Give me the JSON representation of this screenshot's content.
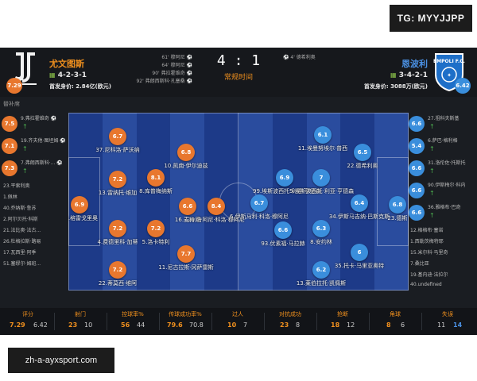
{
  "watermark_top": "TG: MYYJJPP",
  "watermark_bottom": "zh-a-ayxsport.com",
  "home": {
    "name": "尤文图斯",
    "formation": "4-2-3-1",
    "value_label": "首发身价: 2.84亿(欧元)",
    "rating": "7.29",
    "events": [
      "61' 穆阿尼",
      "64' 穆阿尼",
      "90' 弗拉霍维奇",
      "92' 弗朗西斯科·孔塞桑"
    ]
  },
  "away": {
    "name": "恩波利",
    "formation": "3-4-2-1",
    "value_label": "首发身价: 3088万(欧元)",
    "rating": "6.42",
    "events": [
      "4' 德希利奥"
    ]
  },
  "score": "4 : 1",
  "status": "常规时间",
  "subs_title": "替补席",
  "colors": {
    "home": "#e8772e",
    "away": "#3a8edc",
    "accent": "#f0901e",
    "pitch_dark": "#1d3a88",
    "pitch_light": "#2a4c9e"
  },
  "home_bench": [
    {
      "num": "9.",
      "name": "弗拉霍维奇",
      "rating": "7.5",
      "icon": "ball-icon"
    },
    {
      "num": "19.",
      "name": "齐夫他·图坦姆",
      "rating": "7.1",
      "icon": "ball-icon"
    },
    {
      "num": "7.",
      "name": "弗朗西斯科·...",
      "rating": "7.3",
      "icon": "ball-icon"
    },
    {
      "num": "23.",
      "name": "平索利奥"
    },
    {
      "num": "1.",
      "name": "佩林"
    },
    {
      "num": "40.",
      "name": "乔纳斯·鲁苏"
    },
    {
      "num": "2.",
      "name": "阿尔贝托·科斯"
    },
    {
      "num": "21.",
      "name": "法比奥·法古..."
    },
    {
      "num": "26.",
      "name": "杜格拉斯·路易"
    },
    {
      "num": "17.",
      "name": "瓦西里·阿季"
    },
    {
      "num": "51.",
      "name": "塞缪尔·姆班..."
    }
  ],
  "away_bench": [
    {
      "num": "27.",
      "name": "祖科夫斯基",
      "rating": "6.6"
    },
    {
      "num": "6.",
      "name": "萨巴·格利格",
      "rating": "5.4"
    },
    {
      "num": "31.",
      "name": "洛伦佐·托斯托",
      "rating": "6.6"
    },
    {
      "num": "90.",
      "name": "伊斯梅尔·科内",
      "rating": "6.6"
    },
    {
      "num": "36.",
      "name": "雅格布·巴奇",
      "rating": "6.6"
    },
    {
      "num": "12.",
      "name": "格格布·塞诺"
    },
    {
      "num": "1.",
      "name": "西勒茨梅特耶"
    },
    {
      "num": "15.",
      "name": "米尔科·马里奇"
    },
    {
      "num": "7.",
      "name": "桑比亚"
    },
    {
      "num": "19.",
      "name": "基内迪·法拉尔"
    },
    {
      "num": "40.",
      "name": "undefined"
    }
  ],
  "home_players": [
    {
      "rating": "6.7",
      "name": "37.尼科洛·萨沃纳"
    },
    {
      "rating": "6.8",
      "name": "10.凯南·伊尔迪兹"
    },
    {
      "rating": "7.2",
      "name": "13.雷纳托·维加"
    },
    {
      "rating": "8.1",
      "name": "8.库普梅纳斯"
    },
    {
      "rating": "6.9",
      "name": "29.格雷戈里奥"
    },
    {
      "rating": "8.4",
      "name": "20.鲁阿尼·科洛·穆阿尼"
    },
    {
      "rating": "6.6",
      "name": "16.麦肯尼"
    },
    {
      "rating": "7.2",
      "name": "4.费德里科·加蒂"
    },
    {
      "rating": "7.2",
      "name": "5.洛卡特利"
    },
    {
      "rating": "7.7",
      "name": "11.尼古拉斯·冈萨雷斯"
    },
    {
      "rating": "7.2",
      "name": "22.蒂莫西·维阿"
    }
  ],
  "away_players": [
    {
      "rating": "6.1",
      "name": "11.埃曼努埃尔·普西"
    },
    {
      "rating": "6.5",
      "name": "22.德希利奥"
    },
    {
      "rating": "6.9",
      "name": "99.埃斯波西托·利亚·亨德森"
    },
    {
      "rating": "7",
      "name": "5.埃斯波西托·利亚·亨德森"
    },
    {
      "rating": "6.7",
      "name": "6.伊斯马利·科洛·穆阿尼"
    },
    {
      "rating": "6.4",
      "name": "34.伊斯马吉纳·巴斯克斯"
    },
    {
      "rating": "6.8",
      "name": "23.德斯"
    },
    {
      "rating": "6.6",
      "name": "93.优素福·马拉赫"
    },
    {
      "rating": "6.3",
      "name": "8.安约林"
    },
    {
      "rating": "6",
      "name": "35.托卡·马里亚奥特"
    },
    {
      "rating": "6.2",
      "name": "13.莱伯拉托·凯佩斯"
    }
  ],
  "stats": [
    {
      "label": "评分",
      "home": "7.29",
      "away": "6.42"
    },
    {
      "label": "射门",
      "home": "23",
      "away": "10"
    },
    {
      "label": "控球率%",
      "home": "56",
      "away": "44"
    },
    {
      "label": "传球成功率%",
      "home": "79.6",
      "away": "70.8"
    },
    {
      "label": "过人",
      "home": "10",
      "away": "7"
    },
    {
      "label": "对抗成功",
      "home": "23",
      "away": "8"
    },
    {
      "label": "抢断",
      "home": "18",
      "away": "12"
    },
    {
      "label": "角球",
      "home": "8",
      "away": "6"
    },
    {
      "label": "失误",
      "home": "11",
      "away": "14"
    }
  ]
}
